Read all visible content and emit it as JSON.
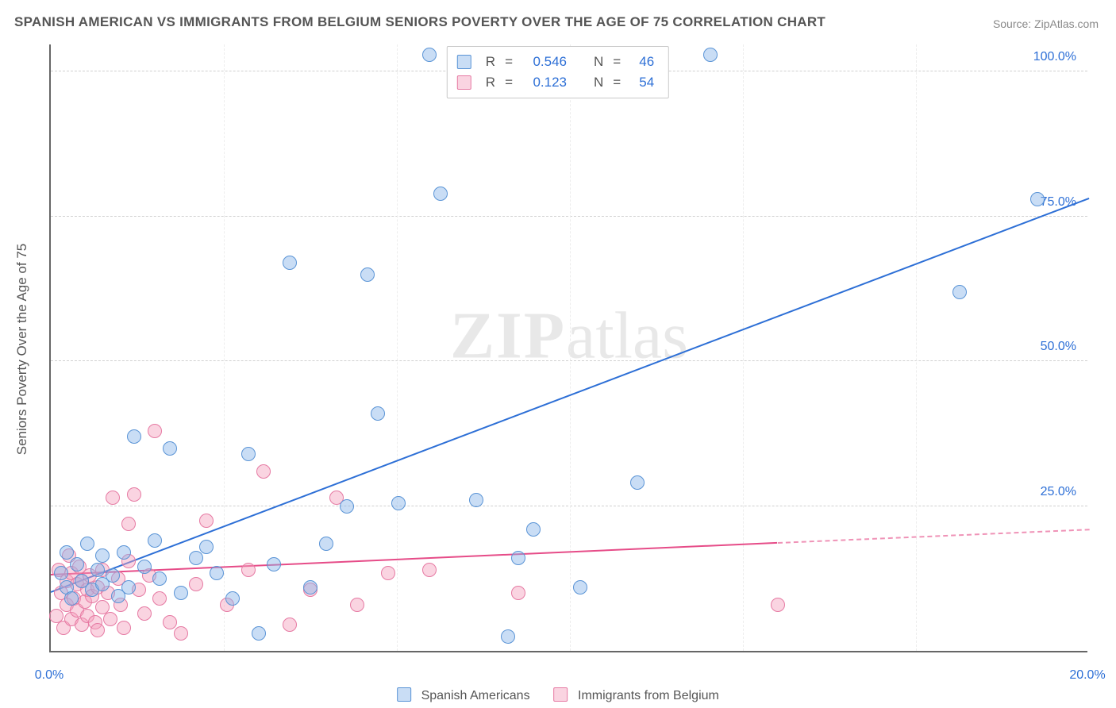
{
  "title": "SPANISH AMERICAN VS IMMIGRANTS FROM BELGIUM SENIORS POVERTY OVER THE AGE OF 75 CORRELATION CHART",
  "source": "Source: ZipAtlas.com",
  "watermark_a": "ZIP",
  "watermark_b": "atlas",
  "chart": {
    "type": "scatter",
    "background_color": "#ffffff",
    "grid_color": "#d0d0d0",
    "axis_color": "#666666",
    "text_color": "#555555",
    "xlim": [
      0,
      20
    ],
    "ylim": [
      0,
      105
    ],
    "xticks": [
      {
        "v": 0.0,
        "label": "0.0%",
        "color": "#2d6fd6"
      },
      {
        "v": 20.0,
        "label": "20.0%",
        "color": "#2d6fd6"
      }
    ],
    "yticks": [
      {
        "v": 25.0,
        "label": "25.0%",
        "color": "#2d6fd6"
      },
      {
        "v": 50.0,
        "label": "50.0%",
        "color": "#2d6fd6"
      },
      {
        "v": 75.0,
        "label": "75.0%",
        "color": "#2d6fd6"
      },
      {
        "v": 100.0,
        "label": "100.0%",
        "color": "#2d6fd6"
      }
    ],
    "xgrid": [
      3.33,
      6.66,
      10.0,
      13.33,
      16.66
    ],
    "yaxis_label": "Seniors Poverty Over the Age of 75",
    "yaxis_label_fontsize": 17,
    "tick_fontsize": 16,
    "title_fontsize": 17,
    "marker_radius": 9,
    "marker_border_width": 1.5,
    "regression_line_width": 2
  },
  "series": [
    {
      "id": "spanish",
      "label": "Spanish Americans",
      "fill": "rgba(136,179,232,0.45)",
      "stroke": "#5a94d6",
      "line_color": "#2d6fd6",
      "R": "0.546",
      "N": "46",
      "regression": {
        "x1": 0.0,
        "y1": 10.0,
        "x2": 20.0,
        "y2": 78.0,
        "dashed": false
      },
      "points": [
        [
          0.2,
          13.5
        ],
        [
          0.3,
          11.0
        ],
        [
          0.3,
          17.0
        ],
        [
          0.4,
          9.0
        ],
        [
          0.5,
          15.0
        ],
        [
          0.6,
          12.0
        ],
        [
          0.7,
          18.5
        ],
        [
          0.8,
          10.5
        ],
        [
          0.9,
          14.0
        ],
        [
          1.0,
          11.5
        ],
        [
          1.0,
          16.5
        ],
        [
          1.2,
          13.0
        ],
        [
          1.3,
          9.5
        ],
        [
          1.4,
          17.0
        ],
        [
          1.5,
          11.0
        ],
        [
          1.6,
          37.0
        ],
        [
          1.8,
          14.5
        ],
        [
          2.0,
          19.0
        ],
        [
          2.1,
          12.5
        ],
        [
          2.3,
          35.0
        ],
        [
          2.5,
          10.0
        ],
        [
          2.8,
          16.0
        ],
        [
          3.0,
          18.0
        ],
        [
          3.2,
          13.5
        ],
        [
          3.5,
          9.0
        ],
        [
          3.8,
          34.0
        ],
        [
          4.0,
          3.0
        ],
        [
          4.3,
          15.0
        ],
        [
          4.6,
          67.0
        ],
        [
          5.0,
          11.0
        ],
        [
          5.3,
          18.5
        ],
        [
          5.7,
          25.0
        ],
        [
          6.1,
          65.0
        ],
        [
          6.3,
          41.0
        ],
        [
          6.7,
          25.5
        ],
        [
          7.3,
          103.0
        ],
        [
          7.5,
          79.0
        ],
        [
          8.2,
          26.0
        ],
        [
          8.8,
          2.5
        ],
        [
          9.0,
          16.0
        ],
        [
          9.3,
          21.0
        ],
        [
          10.2,
          11.0
        ],
        [
          11.3,
          29.0
        ],
        [
          12.7,
          103.0
        ],
        [
          17.5,
          62.0
        ],
        [
          19.0,
          78.0
        ]
      ]
    },
    {
      "id": "belgium",
      "label": "Immigrants from Belgium",
      "fill": "rgba(244,160,188,0.45)",
      "stroke": "#e67aa3",
      "line_color": "#e64c88",
      "R": "0.123",
      "N": "54",
      "regression_solid": {
        "x1": 0.0,
        "y1": 13.0,
        "x2": 14.0,
        "y2": 18.5
      },
      "regression_dash": {
        "x1": 14.0,
        "y1": 18.5,
        "x2": 20.0,
        "y2": 20.8
      },
      "points": [
        [
          0.1,
          6.0
        ],
        [
          0.15,
          14.0
        ],
        [
          0.2,
          10.0
        ],
        [
          0.25,
          4.0
        ],
        [
          0.3,
          12.0
        ],
        [
          0.3,
          8.0
        ],
        [
          0.35,
          16.5
        ],
        [
          0.4,
          5.5
        ],
        [
          0.4,
          13.5
        ],
        [
          0.45,
          9.0
        ],
        [
          0.5,
          11.5
        ],
        [
          0.5,
          7.0
        ],
        [
          0.55,
          14.5
        ],
        [
          0.6,
          4.5
        ],
        [
          0.6,
          12.0
        ],
        [
          0.65,
          8.5
        ],
        [
          0.7,
          10.5
        ],
        [
          0.7,
          6.0
        ],
        [
          0.75,
          13.0
        ],
        [
          0.8,
          9.5
        ],
        [
          0.85,
          5.0
        ],
        [
          0.9,
          11.0
        ],
        [
          0.9,
          3.5
        ],
        [
          1.0,
          14.0
        ],
        [
          1.0,
          7.5
        ],
        [
          1.1,
          10.0
        ],
        [
          1.15,
          5.5
        ],
        [
          1.2,
          26.5
        ],
        [
          1.3,
          12.5
        ],
        [
          1.35,
          8.0
        ],
        [
          1.4,
          4.0
        ],
        [
          1.5,
          22.0
        ],
        [
          1.5,
          15.5
        ],
        [
          1.6,
          27.0
        ],
        [
          1.7,
          10.5
        ],
        [
          1.8,
          6.5
        ],
        [
          1.9,
          13.0
        ],
        [
          2.0,
          38.0
        ],
        [
          2.1,
          9.0
        ],
        [
          2.3,
          5.0
        ],
        [
          2.5,
          3.0
        ],
        [
          2.8,
          11.5
        ],
        [
          3.0,
          22.5
        ],
        [
          3.4,
          8.0
        ],
        [
          3.8,
          14.0
        ],
        [
          4.1,
          31.0
        ],
        [
          4.6,
          4.5
        ],
        [
          5.0,
          10.5
        ],
        [
          5.5,
          26.5
        ],
        [
          5.9,
          8.0
        ],
        [
          6.5,
          13.5
        ],
        [
          7.3,
          14.0
        ],
        [
          9.0,
          10.0
        ],
        [
          14.0,
          8.0
        ]
      ]
    }
  ],
  "legend": {
    "series_labels": [
      "Spanish Americans",
      "Immigrants from Belgium"
    ]
  }
}
